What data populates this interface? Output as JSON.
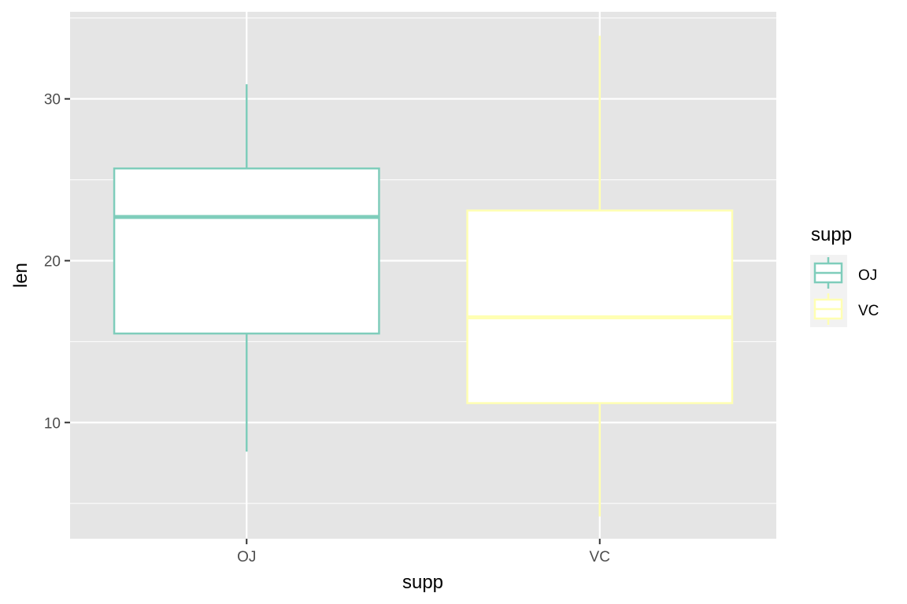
{
  "chart_data": {
    "type": "boxplot",
    "title": "",
    "xlabel": "supp",
    "ylabel": "len",
    "categories": [
      "OJ",
      "VC"
    ],
    "ylim": [
      2.82,
      35.38
    ],
    "yticks": [
      10,
      20,
      30
    ],
    "grid": true,
    "series": [
      {
        "name": "OJ",
        "color": "#7FCDBB",
        "min": 8.2,
        "q1": 15.5,
        "median": 22.7,
        "q3": 25.7,
        "max": 30.9
      },
      {
        "name": "VC",
        "color": "#FFFFB3",
        "min": 4.2,
        "q1": 11.2,
        "median": 16.5,
        "q3": 23.1,
        "max": 33.9
      }
    ],
    "legend": {
      "title": "supp",
      "position": "right",
      "entries": [
        "OJ",
        "VC"
      ]
    }
  }
}
